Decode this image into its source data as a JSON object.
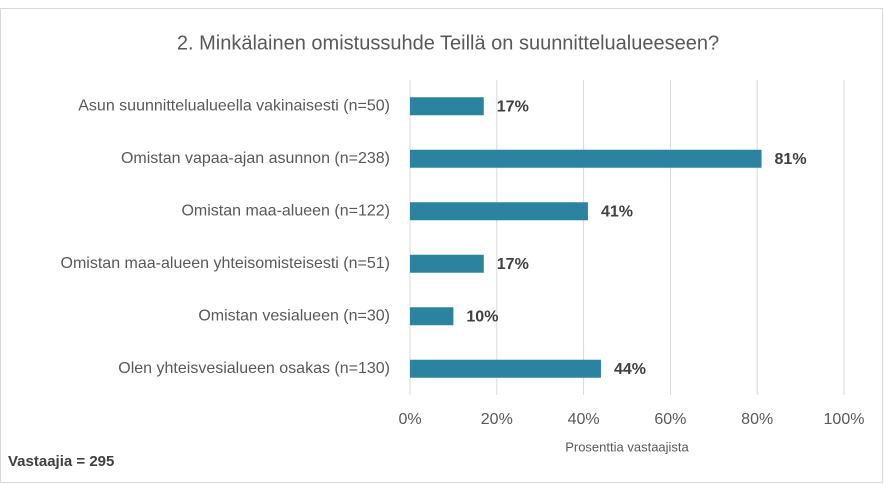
{
  "chart_data": {
    "type": "bar",
    "orientation": "horizontal",
    "title": "2. Minkälainen omistussuhde Teillä on suunnittelualueeseen?",
    "categories": [
      "Asun suunnittelualueella vakinaisesti (n=50)",
      "Omistan vapaa-ajan asunnon (n=238)",
      "Omistan maa-alueen (n=122)",
      "Omistan maa-alueen yhteisomisteisesti (n=51)",
      "Omistan vesialueen (n=30)",
      "Olen yhteisvesialueen osakas (n=130)"
    ],
    "values": [
      17,
      81,
      41,
      17,
      10,
      44
    ],
    "value_labels": [
      "17%",
      "81%",
      "41%",
      "17%",
      "10%",
      "44%"
    ],
    "color": "#2b83a0",
    "xlabel": "Prosenttia vastaajista",
    "xlim": [
      0,
      100
    ],
    "xticks": [
      {
        "value": 0,
        "label": "0%"
      },
      {
        "value": 20,
        "label": "20%"
      },
      {
        "value": 40,
        "label": "40%"
      },
      {
        "value": 60,
        "label": "60%"
      },
      {
        "value": 80,
        "label": "80%"
      },
      {
        "value": 100,
        "label": "100%"
      }
    ],
    "grid": true,
    "annotation": "Vastaajia = 295"
  }
}
